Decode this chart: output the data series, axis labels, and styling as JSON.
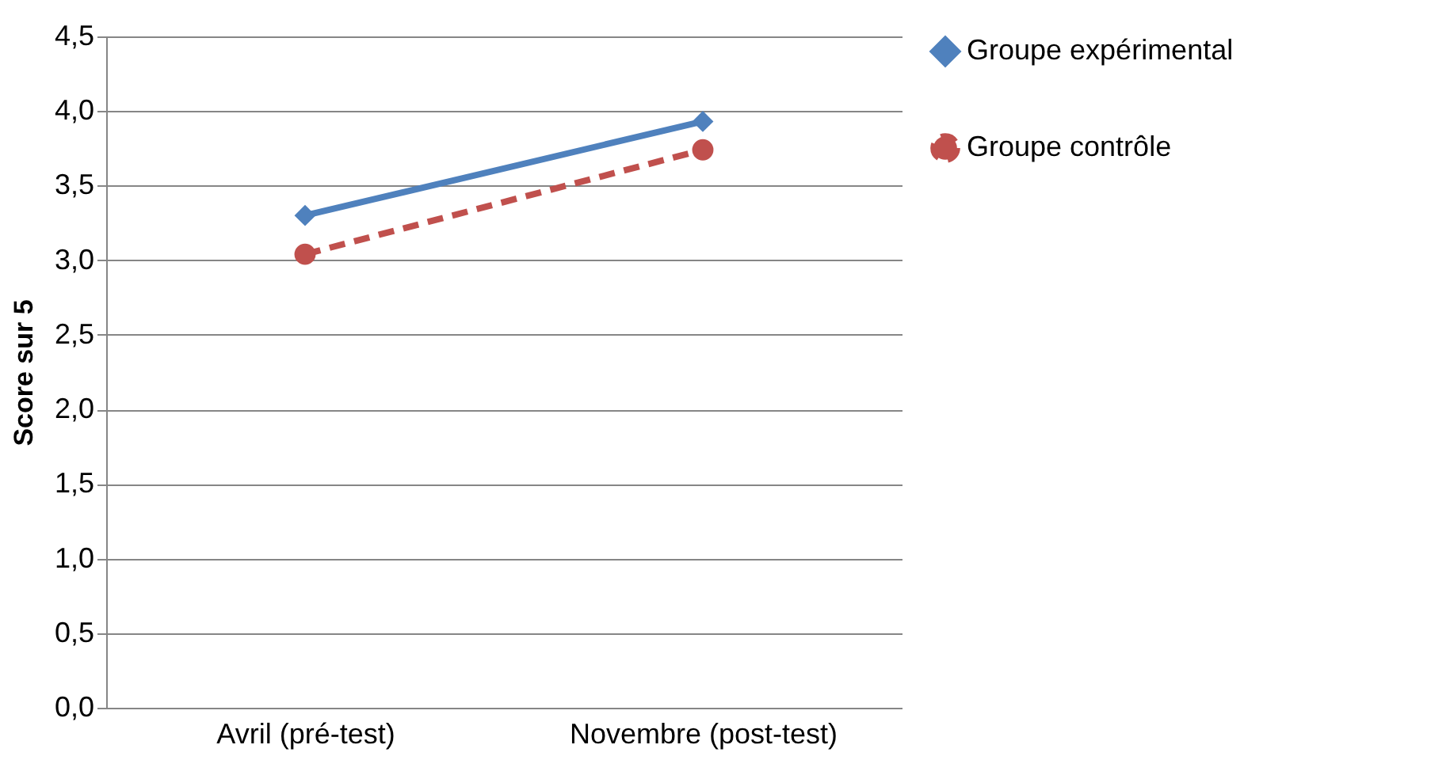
{
  "chart_data": {
    "type": "line",
    "ylabel": "Score sur 5",
    "categories": [
      "Avril (pré-test)",
      "Novembre (post-test)"
    ],
    "series": [
      {
        "name": "Groupe expérimental",
        "color": "#4f81bd",
        "values": [
          3.3,
          3.93
        ],
        "marker": "diamond",
        "line_style": "solid"
      },
      {
        "name": "Groupe contrôle",
        "color": "#c0504d",
        "values": [
          3.04,
          3.74
        ],
        "marker": "circle",
        "line_style": "dashed"
      }
    ],
    "ylim": [
      0,
      4.5
    ],
    "yticks": [
      {
        "value": 0,
        "label": "0,0"
      },
      {
        "value": 0.5,
        "label": "0,5"
      },
      {
        "value": 1,
        "label": "1,0"
      },
      {
        "value": 1.5,
        "label": "1,5"
      },
      {
        "value": 2,
        "label": "2,0"
      },
      {
        "value": 2.5,
        "label": "2,5"
      },
      {
        "value": 3,
        "label": "3,0"
      },
      {
        "value": 3.5,
        "label": "3,5"
      },
      {
        "value": 4,
        "label": "4,0"
      },
      {
        "value": 4.5,
        "label": "4,5"
      }
    ],
    "grid": "y",
    "legend": "right"
  }
}
